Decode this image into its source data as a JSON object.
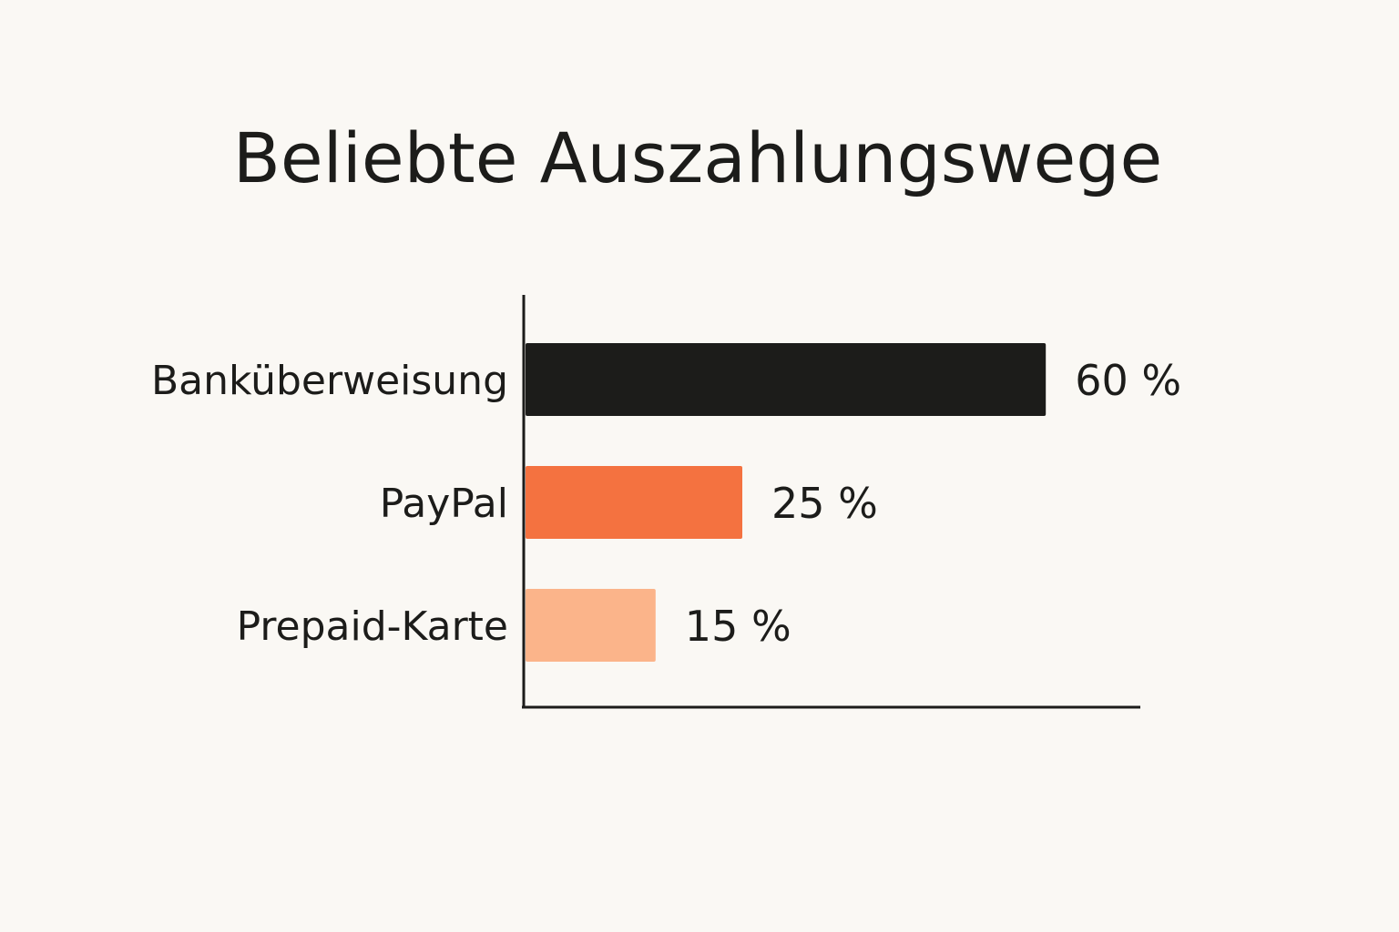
{
  "chart_data": {
    "type": "bar",
    "orientation": "horizontal",
    "title": "Beliebte Auszahlungswege",
    "categories": [
      "Banküberweisung",
      "PayPal",
      "Prepaid-Karte"
    ],
    "values": [
      60,
      25,
      15
    ],
    "value_labels": [
      "60 %",
      "25 %",
      "15 %"
    ],
    "unit": "%",
    "colors": [
      "#1c1c1a",
      "#f47240",
      "#fbb48a"
    ],
    "xlim": [
      0,
      70
    ],
    "grid": false,
    "legend": "none"
  }
}
